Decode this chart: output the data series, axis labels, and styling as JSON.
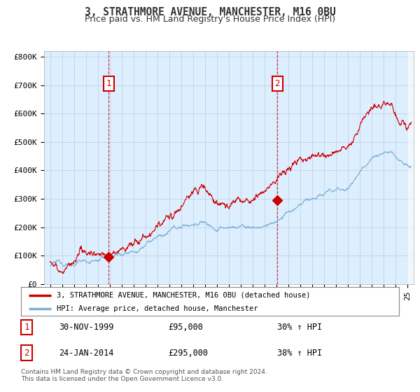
{
  "title": "3, STRATHMORE AVENUE, MANCHESTER, M16 0BU",
  "subtitle": "Price paid vs. HM Land Registry's House Price Index (HPI)",
  "ylabel_ticks": [
    "£0",
    "£100K",
    "£200K",
    "£300K",
    "£400K",
    "£500K",
    "£600K",
    "£700K",
    "£800K"
  ],
  "ytick_values": [
    0,
    100000,
    200000,
    300000,
    400000,
    500000,
    600000,
    700000,
    800000
  ],
  "ylim": [
    0,
    820000
  ],
  "xlim_start": 1994.5,
  "xlim_end": 2025.5,
  "purchase_color": "#cc0000",
  "hpi_color": "#7ab0d4",
  "chart_bg": "#ddeeff",
  "background_color": "#ffffff",
  "grid_color": "#bbccdd",
  "purchase_1": {
    "year": 1999.917,
    "value": 95000,
    "label": "1"
  },
  "purchase_2": {
    "year": 2014.07,
    "value": 295000,
    "label": "2"
  },
  "legend_line1": "3, STRATHMORE AVENUE, MANCHESTER, M16 0BU (detached house)",
  "legend_line2": "HPI: Average price, detached house, Manchester",
  "table_rows": [
    [
      "1",
      "30-NOV-1999",
      "£95,000",
      "30% ↑ HPI"
    ],
    [
      "2",
      "24-JAN-2014",
      "£295,000",
      "38% ↑ HPI"
    ]
  ],
  "footnote": "Contains HM Land Registry data © Crown copyright and database right 2024.\nThis data is licensed under the Open Government Licence v3.0.",
  "title_color": "#333333",
  "box_color": "#cc0000"
}
